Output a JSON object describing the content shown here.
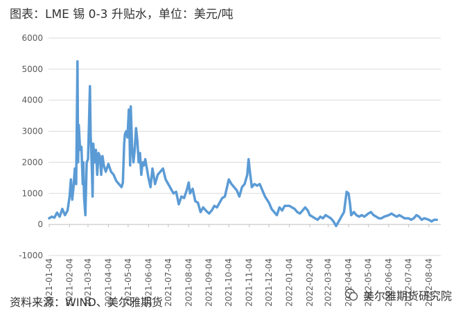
{
  "title": "图表：LME 锡 0-3 升贴水，单位：美元/吨",
  "source": "资料来源：WIND、美尔雅期货",
  "watermark": "美尔雅期货研究院",
  "colors": {
    "series": "#5B9BD5",
    "grid": "#D9D9D9",
    "axis": "#BFBFBF"
  },
  "chart_data": {
    "type": "line",
    "title": "图表：LME 锡 0-3 升贴水，单位：美元/吨",
    "xlabel": "",
    "ylabel": "",
    "ylim": [
      -1000,
      6000
    ],
    "yticks": [
      6000,
      5000,
      4000,
      3000,
      2000,
      1000,
      0,
      -1000
    ],
    "xticks": [
      "2021-01-04",
      "2021-02-04",
      "2021-03-04",
      "2021-04-04",
      "2021-05-04",
      "2021-06-04",
      "2021-07-04",
      "2021-08-04",
      "2021-09-04",
      "2021-10-04",
      "2021-11-04",
      "2021-12-04",
      "2022-01-04",
      "2022-02-04",
      "2022-03-04",
      "2022-04-04",
      "2022-05-04",
      "2022-06-04",
      "2022-07-04",
      "2022-08-04"
    ],
    "grid": true,
    "legend": "none",
    "series": [
      {
        "values": [
          [
            "2021-01-04",
            200
          ],
          [
            "2021-01-08",
            250
          ],
          [
            "2021-01-12",
            220
          ],
          [
            "2021-01-16",
            380
          ],
          [
            "2021-01-20",
            250
          ],
          [
            "2021-01-24",
            500
          ],
          [
            "2021-01-28",
            300
          ],
          [
            "2021-02-01",
            450
          ],
          [
            "2021-02-04",
            900
          ],
          [
            "2021-02-06",
            1450
          ],
          [
            "2021-02-08",
            800
          ],
          [
            "2021-02-10",
            1200
          ],
          [
            "2021-02-12",
            1800
          ],
          [
            "2021-02-14",
            1300
          ],
          [
            "2021-02-16",
            5250
          ],
          [
            "2021-02-17",
            2000
          ],
          [
            "2021-02-18",
            3200
          ],
          [
            "2021-02-20",
            2400
          ],
          [
            "2021-02-22",
            2500
          ],
          [
            "2021-02-24",
            1300
          ],
          [
            "2021-02-25",
            2000
          ],
          [
            "2021-02-26",
            900
          ],
          [
            "2021-02-27",
            600
          ],
          [
            "2021-02-28",
            300
          ],
          [
            "2021-03-02",
            2000
          ],
          [
            "2021-03-04",
            2100
          ],
          [
            "2021-03-05",
            2800
          ],
          [
            "2021-03-06",
            3700
          ],
          [
            "2021-03-07",
            4450
          ],
          [
            "2021-03-08",
            2900
          ],
          [
            "2021-03-10",
            1700
          ],
          [
            "2021-03-11",
            900
          ],
          [
            "2021-03-12",
            2600
          ],
          [
            "2021-03-14",
            2000
          ],
          [
            "2021-03-16",
            2400
          ],
          [
            "2021-03-18",
            1600
          ],
          [
            "2021-03-20",
            2300
          ],
          [
            "2021-03-22",
            2200
          ],
          [
            "2021-03-24",
            1600
          ],
          [
            "2021-03-26",
            2200
          ],
          [
            "2021-03-28",
            1900
          ],
          [
            "2021-03-31",
            1700
          ],
          [
            "2021-04-04",
            1950
          ],
          [
            "2021-04-08",
            1700
          ],
          [
            "2021-04-12",
            1600
          ],
          [
            "2021-04-16",
            1400
          ],
          [
            "2021-04-20",
            1300
          ],
          [
            "2021-04-24",
            1200
          ],
          [
            "2021-04-26",
            1350
          ],
          [
            "2021-04-28",
            2600
          ],
          [
            "2021-04-29",
            2900
          ],
          [
            "2021-05-01",
            3000
          ],
          [
            "2021-05-03",
            2800
          ],
          [
            "2021-05-05",
            3700
          ],
          [
            "2021-05-06",
            3000
          ],
          [
            "2021-05-07",
            1900
          ],
          [
            "2021-05-08",
            3800
          ],
          [
            "2021-05-10",
            2500
          ],
          [
            "2021-05-12",
            2000
          ],
          [
            "2021-05-14",
            2400
          ],
          [
            "2021-05-16",
            3100
          ],
          [
            "2021-05-18",
            2700
          ],
          [
            "2021-05-20",
            2000
          ],
          [
            "2021-05-22",
            2300
          ],
          [
            "2021-05-24",
            1600
          ],
          [
            "2021-05-26",
            2000
          ],
          [
            "2021-05-28",
            1900
          ],
          [
            "2021-05-30",
            2100
          ],
          [
            "2021-06-04",
            1500
          ],
          [
            "2021-06-07",
            1200
          ],
          [
            "2021-06-10",
            1800
          ],
          [
            "2021-06-14",
            1300
          ],
          [
            "2021-06-18",
            1600
          ],
          [
            "2021-06-22",
            1700
          ],
          [
            "2021-06-26",
            1800
          ],
          [
            "2021-06-30",
            1450
          ],
          [
            "2021-07-04",
            1300
          ],
          [
            "2021-07-08",
            1150
          ],
          [
            "2021-07-12",
            1000
          ],
          [
            "2021-07-16",
            1050
          ],
          [
            "2021-07-20",
            650
          ],
          [
            "2021-07-24",
            900
          ],
          [
            "2021-07-28",
            850
          ],
          [
            "2021-08-01",
            1100
          ],
          [
            "2021-08-04",
            1350
          ],
          [
            "2021-08-06",
            1000
          ],
          [
            "2021-08-10",
            1150
          ],
          [
            "2021-08-14",
            750
          ],
          [
            "2021-08-18",
            700
          ],
          [
            "2021-08-22",
            400
          ],
          [
            "2021-08-26",
            550
          ],
          [
            "2021-08-30",
            450
          ],
          [
            "2021-09-04",
            350
          ],
          [
            "2021-09-08",
            450
          ],
          [
            "2021-09-12",
            600
          ],
          [
            "2021-09-16",
            550
          ],
          [
            "2021-09-20",
            700
          ],
          [
            "2021-09-24",
            850
          ],
          [
            "2021-09-28",
            900
          ],
          [
            "2021-10-04",
            1450
          ],
          [
            "2021-10-08",
            1300
          ],
          [
            "2021-10-12",
            1200
          ],
          [
            "2021-10-16",
            1100
          ],
          [
            "2021-10-20",
            900
          ],
          [
            "2021-10-24",
            1200
          ],
          [
            "2021-10-28",
            1300
          ],
          [
            "2021-11-01",
            1600
          ],
          [
            "2021-11-03",
            2100
          ],
          [
            "2021-11-05",
            1700
          ],
          [
            "2021-11-08",
            1200
          ],
          [
            "2021-11-12",
            1300
          ],
          [
            "2021-11-16",
            1250
          ],
          [
            "2021-11-20",
            1300
          ],
          [
            "2021-11-24",
            1100
          ],
          [
            "2021-11-28",
            900
          ],
          [
            "2021-12-04",
            700
          ],
          [
            "2021-12-08",
            500
          ],
          [
            "2021-12-12",
            400
          ],
          [
            "2021-12-16",
            300
          ],
          [
            "2021-12-20",
            550
          ],
          [
            "2021-12-24",
            450
          ],
          [
            "2021-12-28",
            600
          ],
          [
            "2022-01-04",
            600
          ],
          [
            "2022-01-08",
            550
          ],
          [
            "2022-01-12",
            500
          ],
          [
            "2022-01-16",
            400
          ],
          [
            "2022-01-20",
            350
          ],
          [
            "2022-01-24",
            450
          ],
          [
            "2022-01-28",
            550
          ],
          [
            "2022-02-01",
            450
          ],
          [
            "2022-02-04",
            300
          ],
          [
            "2022-02-08",
            250
          ],
          [
            "2022-02-12",
            200
          ],
          [
            "2022-02-16",
            150
          ],
          [
            "2022-02-20",
            250
          ],
          [
            "2022-02-24",
            200
          ],
          [
            "2022-02-28",
            300
          ],
          [
            "2022-03-04",
            250
          ],
          [
            "2022-03-08",
            200
          ],
          [
            "2022-03-12",
            100
          ],
          [
            "2022-03-16",
            -50
          ],
          [
            "2022-03-20",
            100
          ],
          [
            "2022-03-24",
            250
          ],
          [
            "2022-03-28",
            400
          ],
          [
            "2022-04-01",
            1050
          ],
          [
            "2022-04-04",
            1000
          ],
          [
            "2022-04-06",
            700
          ],
          [
            "2022-04-08",
            300
          ],
          [
            "2022-04-12",
            400
          ],
          [
            "2022-04-16",
            300
          ],
          [
            "2022-04-20",
            250
          ],
          [
            "2022-04-24",
            300
          ],
          [
            "2022-04-28",
            250
          ],
          [
            "2022-05-04",
            350
          ],
          [
            "2022-05-08",
            400
          ],
          [
            "2022-05-12",
            300
          ],
          [
            "2022-05-16",
            250
          ],
          [
            "2022-05-20",
            200
          ],
          [
            "2022-05-24",
            200
          ],
          [
            "2022-05-28",
            250
          ],
          [
            "2022-06-04",
            300
          ],
          [
            "2022-06-08",
            350
          ],
          [
            "2022-06-12",
            300
          ],
          [
            "2022-06-16",
            250
          ],
          [
            "2022-06-20",
            300
          ],
          [
            "2022-06-24",
            250
          ],
          [
            "2022-06-28",
            200
          ],
          [
            "2022-07-04",
            200
          ],
          [
            "2022-07-08",
            150
          ],
          [
            "2022-07-12",
            200
          ],
          [
            "2022-07-16",
            300
          ],
          [
            "2022-07-20",
            250
          ],
          [
            "2022-07-24",
            150
          ],
          [
            "2022-07-28",
            200
          ],
          [
            "2022-08-04",
            150
          ],
          [
            "2022-08-08",
            100
          ],
          [
            "2022-08-12",
            150
          ],
          [
            "2022-08-16",
            150
          ]
        ]
      }
    ]
  }
}
